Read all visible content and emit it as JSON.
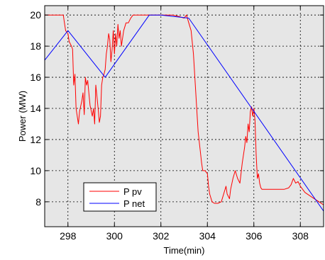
{
  "chart_data": {
    "type": "line",
    "xlabel": "Time(min)",
    "ylabel": "Power (MW)",
    "xlim": [
      297,
      309
    ],
    "ylim": [
      6.4,
      20.6
    ],
    "xticks": [
      298,
      300,
      302,
      304,
      306,
      308
    ],
    "yticks": [
      8,
      10,
      12,
      14,
      16,
      18,
      20
    ],
    "grid": true,
    "background": "#e6e6e6",
    "legend_position": "bottom-left",
    "series": [
      {
        "name": "P pv",
        "color": "#ff0000",
        "x": [
          297.0,
          297.5,
          297.8,
          297.85,
          297.9,
          298.0,
          298.05,
          298.15,
          298.2,
          298.25,
          298.3,
          298.35,
          298.45,
          298.5,
          298.6,
          298.65,
          298.7,
          298.75,
          298.8,
          298.85,
          298.9,
          298.95,
          299.05,
          299.1,
          299.15,
          299.2,
          299.3,
          299.35,
          299.4,
          299.45,
          299.5,
          299.55,
          299.6,
          299.65,
          299.7,
          299.75,
          299.8,
          299.85,
          299.9,
          299.95,
          300.0,
          300.05,
          300.1,
          300.15,
          300.2,
          300.25,
          300.3,
          300.4,
          300.5,
          300.6,
          300.7,
          300.8,
          301.0,
          301.2,
          301.5,
          301.8,
          302.0,
          302.3,
          302.5,
          302.8,
          303.0,
          303.1,
          303.2,
          303.3,
          303.4,
          303.5,
          303.6,
          303.7,
          303.75,
          303.8,
          303.9,
          304.0,
          304.05,
          304.1,
          304.2,
          304.3,
          304.45,
          304.6,
          304.8,
          304.85,
          304.95,
          305.0,
          305.1,
          305.2,
          305.3,
          305.4,
          305.5,
          305.6,
          305.65,
          305.7,
          305.75,
          305.8,
          305.85,
          305.9,
          305.95,
          306.0,
          306.05,
          306.1,
          306.15,
          306.2,
          306.25,
          306.3,
          306.35,
          306.5,
          306.8,
          307.0,
          307.3,
          307.5,
          307.6,
          307.7,
          307.8,
          307.9,
          308.0,
          308.2,
          308.5,
          308.8,
          309.0
        ],
        "y": [
          20.0,
          20.0,
          20.0,
          19.5,
          19.0,
          18.8,
          18.3,
          18.0,
          17.8,
          15.5,
          16.2,
          14.0,
          13.0,
          13.8,
          14.5,
          15.0,
          13.6,
          16.0,
          15.5,
          15.8,
          15.0,
          14.2,
          13.5,
          14.0,
          13.0,
          15.5,
          14.0,
          13.1,
          13.5,
          15.5,
          16.0,
          16.2,
          16.5,
          17.5,
          18.0,
          18.8,
          18.4,
          17.0,
          17.8,
          19.0,
          17.5,
          18.8,
          18.0,
          19.4,
          18.5,
          19.0,
          18.0,
          19.0,
          19.5,
          19.5,
          19.8,
          20.0,
          20.0,
          20.0,
          20.0,
          20.0,
          20.0,
          20.0,
          20.0,
          19.9,
          19.8,
          20.0,
          19.5,
          19.0,
          17.5,
          15.0,
          12.5,
          11.2,
          10.5,
          10.0,
          10.0,
          9.8,
          9.0,
          8.5,
          8.0,
          7.9,
          7.9,
          8.0,
          9.0,
          8.5,
          8.2,
          8.8,
          9.5,
          10.0,
          9.5,
          9.2,
          10.5,
          11.5,
          12.2,
          11.8,
          13.0,
          12.5,
          13.8,
          14.1,
          13.5,
          14.0,
          13.2,
          11.0,
          9.5,
          9.8,
          9.2,
          8.9,
          8.8,
          8.8,
          8.8,
          8.8,
          8.8,
          8.9,
          9.1,
          9.5,
          9.2,
          9.3,
          9.0,
          8.6,
          8.3,
          8.0,
          7.8
        ]
      },
      {
        "name": "P net",
        "color": "#0000ff",
        "x": [
          297.0,
          298.0,
          299.6,
          301.5,
          302.0,
          303.2,
          309.0
        ],
        "y": [
          17.1,
          19.0,
          16.0,
          20.0,
          20.0,
          19.8,
          7.4
        ]
      }
    ]
  }
}
